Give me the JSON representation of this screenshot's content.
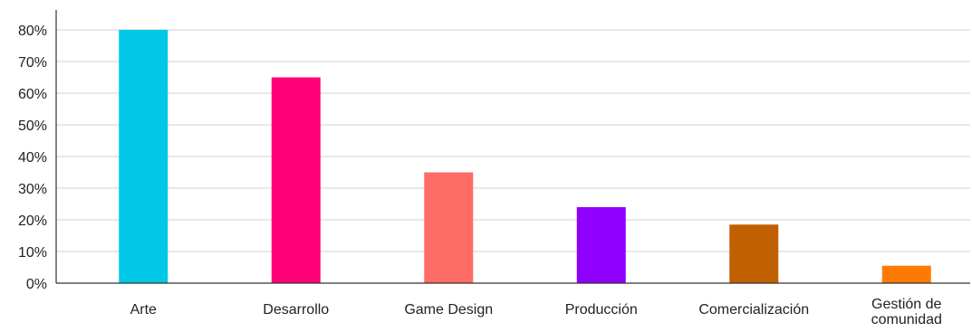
{
  "chart_data": {
    "type": "bar",
    "title": "",
    "xlabel": "",
    "ylabel": "",
    "categories": [
      "Arte",
      "Desarrollo",
      "Game Design",
      "Producción",
      "Comercialización",
      "Gestión de comunidad"
    ],
    "category_lines": [
      [
        "Arte"
      ],
      [
        "Desarrollo"
      ],
      [
        "Game Design"
      ],
      [
        "Producción"
      ],
      [
        "Comercialización"
      ],
      [
        "Gestión de",
        "comunidad"
      ]
    ],
    "values": [
      80,
      65,
      35,
      24,
      18.5,
      5.5
    ],
    "colors": [
      "#00c8e6",
      "#ff0078",
      "#ff6b65",
      "#8f00ff",
      "#c06000",
      "#ff7a00"
    ],
    "ylim": [
      0,
      80
    ],
    "yticks": [
      0,
      10,
      20,
      30,
      40,
      50,
      60,
      70,
      80
    ],
    "ytick_labels": [
      "0%",
      "10%",
      "20%",
      "30%",
      "40%",
      "50%",
      "60%",
      "70%",
      "80%"
    ],
    "grid": true,
    "legend": "none"
  }
}
